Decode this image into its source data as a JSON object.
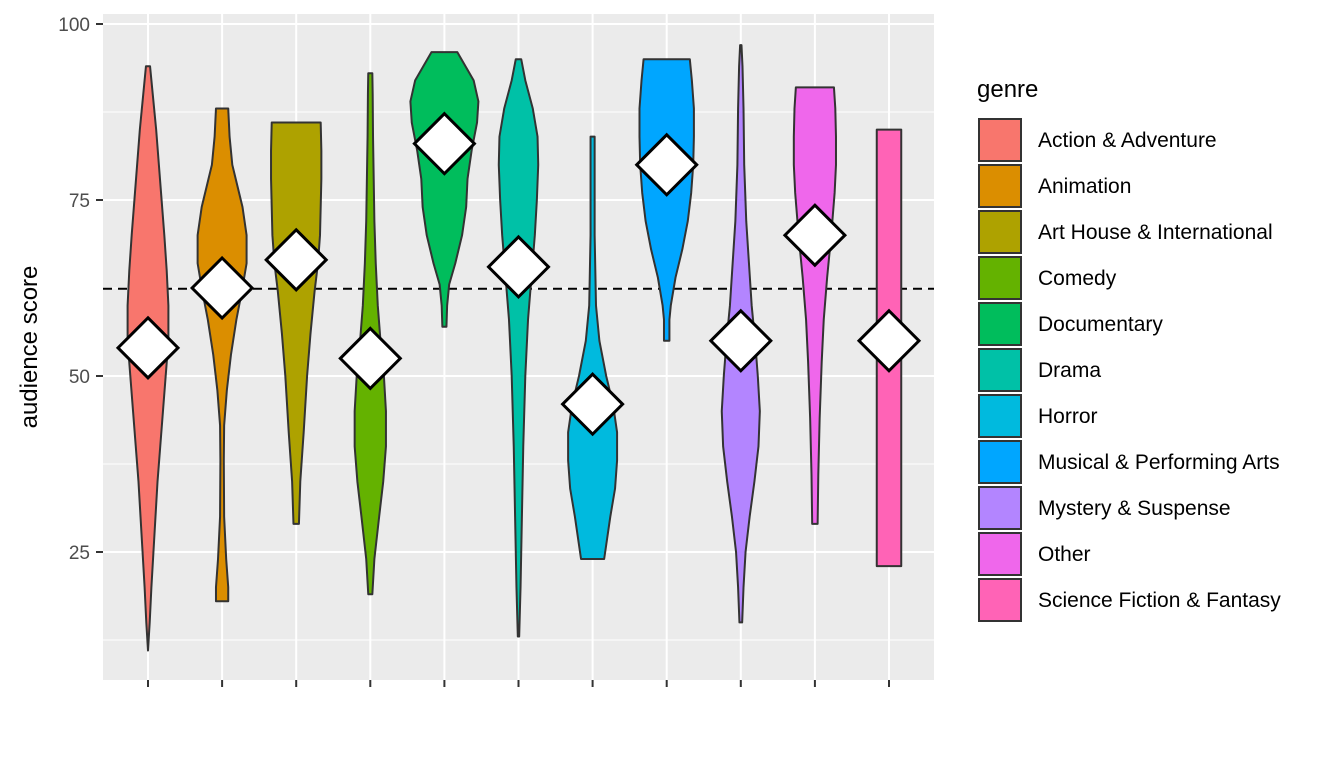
{
  "chart_data": {
    "type": "violin",
    "ylabel": "audience score",
    "xlabel": "",
    "ylim": [
      7,
      101
    ],
    "yticks": [
      25,
      50,
      75,
      100
    ],
    "grid": true,
    "reference_line": {
      "value": 62.4,
      "style": "dashed"
    },
    "legend": {
      "title": "genre",
      "position": "right"
    },
    "series": [
      {
        "name": "Action & Adventure",
        "color": "#F8766D",
        "min": 11,
        "max": 94,
        "mean": 54,
        "density": [
          [
            11,
            0.0
          ],
          [
            15,
            0.05
          ],
          [
            20,
            0.1
          ],
          [
            25,
            0.16
          ],
          [
            30,
            0.22
          ],
          [
            35,
            0.28
          ],
          [
            40,
            0.36
          ],
          [
            45,
            0.44
          ],
          [
            50,
            0.52
          ],
          [
            55,
            0.6
          ],
          [
            60,
            0.6
          ],
          [
            65,
            0.55
          ],
          [
            70,
            0.48
          ],
          [
            75,
            0.4
          ],
          [
            80,
            0.32
          ],
          [
            85,
            0.24
          ],
          [
            90,
            0.14
          ],
          [
            94,
            0.06
          ]
        ]
      },
      {
        "name": "Animation",
        "color": "#DB8E00",
        "min": 18,
        "max": 88,
        "mean": 62.5,
        "density": [
          [
            18,
            0.18
          ],
          [
            20,
            0.18
          ],
          [
            24,
            0.12
          ],
          [
            30,
            0.06
          ],
          [
            38,
            0.05
          ],
          [
            43,
            0.06
          ],
          [
            48,
            0.14
          ],
          [
            53,
            0.26
          ],
          [
            58,
            0.42
          ],
          [
            62,
            0.58
          ],
          [
            66,
            0.72
          ],
          [
            70,
            0.72
          ],
          [
            74,
            0.6
          ],
          [
            78,
            0.4
          ],
          [
            80,
            0.3
          ],
          [
            84,
            0.22
          ],
          [
            88,
            0.18
          ]
        ]
      },
      {
        "name": "Art House & International",
        "color": "#AEA200",
        "min": 29,
        "max": 86,
        "mean": 66.5,
        "density": [
          [
            29,
            0.08
          ],
          [
            35,
            0.12
          ],
          [
            42,
            0.22
          ],
          [
            50,
            0.32
          ],
          [
            56,
            0.42
          ],
          [
            62,
            0.54
          ],
          [
            66,
            0.64
          ],
          [
            70,
            0.7
          ],
          [
            74,
            0.72
          ],
          [
            78,
            0.74
          ],
          [
            82,
            0.74
          ],
          [
            86,
            0.72
          ]
        ]
      },
      {
        "name": "Comedy",
        "color": "#64B200",
        "min": 19,
        "max": 93,
        "mean": 52.5,
        "density": [
          [
            19,
            0.06
          ],
          [
            24,
            0.12
          ],
          [
            30,
            0.26
          ],
          [
            35,
            0.38
          ],
          [
            40,
            0.46
          ],
          [
            45,
            0.46
          ],
          [
            50,
            0.4
          ],
          [
            55,
            0.3
          ],
          [
            60,
            0.22
          ],
          [
            66,
            0.16
          ],
          [
            72,
            0.12
          ],
          [
            78,
            0.1
          ],
          [
            84,
            0.08
          ],
          [
            90,
            0.07
          ],
          [
            93,
            0.06
          ]
        ]
      },
      {
        "name": "Documentary",
        "color": "#00BD5C",
        "min": 57,
        "max": 96,
        "mean": 83,
        "density": [
          [
            57,
            0.06
          ],
          [
            60,
            0.08
          ],
          [
            63,
            0.14
          ],
          [
            66,
            0.32
          ],
          [
            70,
            0.52
          ],
          [
            74,
            0.64
          ],
          [
            78,
            0.68
          ],
          [
            82,
            0.8
          ],
          [
            86,
            0.96
          ],
          [
            89,
            1.0
          ],
          [
            92,
            0.86
          ],
          [
            94,
            0.62
          ],
          [
            96,
            0.38
          ]
        ]
      },
      {
        "name": "Drama",
        "color": "#00C1A7",
        "min": 13,
        "max": 95,
        "mean": 65.5,
        "density": [
          [
            13,
            0.02
          ],
          [
            20,
            0.06
          ],
          [
            30,
            0.1
          ],
          [
            40,
            0.14
          ],
          [
            50,
            0.2
          ],
          [
            58,
            0.28
          ],
          [
            64,
            0.38
          ],
          [
            70,
            0.48
          ],
          [
            75,
            0.54
          ],
          [
            80,
            0.58
          ],
          [
            84,
            0.56
          ],
          [
            88,
            0.42
          ],
          [
            92,
            0.2
          ],
          [
            95,
            0.08
          ]
        ]
      },
      {
        "name": "Horror",
        "color": "#00BADE",
        "min": 24,
        "max": 84,
        "mean": 46,
        "density": [
          [
            24,
            0.34
          ],
          [
            26,
            0.4
          ],
          [
            30,
            0.52
          ],
          [
            34,
            0.66
          ],
          [
            38,
            0.72
          ],
          [
            42,
            0.72
          ],
          [
            46,
            0.6
          ],
          [
            50,
            0.4
          ],
          [
            55,
            0.2
          ],
          [
            60,
            0.1
          ],
          [
            65,
            0.08
          ],
          [
            70,
            0.06
          ],
          [
            76,
            0.06
          ],
          [
            80,
            0.06
          ],
          [
            84,
            0.06
          ]
        ]
      },
      {
        "name": "Musical & Performing Arts",
        "color": "#00A6FF",
        "min": 55,
        "max": 95,
        "mean": 80,
        "density": [
          [
            55,
            0.08
          ],
          [
            58,
            0.08
          ],
          [
            60,
            0.12
          ],
          [
            64,
            0.26
          ],
          [
            68,
            0.46
          ],
          [
            72,
            0.62
          ],
          [
            76,
            0.72
          ],
          [
            80,
            0.78
          ],
          [
            84,
            0.8
          ],
          [
            88,
            0.8
          ],
          [
            92,
            0.74
          ],
          [
            95,
            0.68
          ]
        ]
      },
      {
        "name": "Mystery & Suspense",
        "color": "#B385FF",
        "min": 15,
        "max": 97,
        "mean": 55,
        "density": [
          [
            15,
            0.04
          ],
          [
            20,
            0.08
          ],
          [
            25,
            0.14
          ],
          [
            30,
            0.26
          ],
          [
            35,
            0.4
          ],
          [
            40,
            0.52
          ],
          [
            45,
            0.56
          ],
          [
            50,
            0.5
          ],
          [
            55,
            0.42
          ],
          [
            60,
            0.32
          ],
          [
            66,
            0.24
          ],
          [
            72,
            0.16
          ],
          [
            80,
            0.1
          ],
          [
            88,
            0.08
          ],
          [
            94,
            0.05
          ],
          [
            97,
            0.02
          ]
        ]
      },
      {
        "name": "Other",
        "color": "#EF67EB",
        "min": 29,
        "max": 91,
        "mean": 70,
        "density": [
          [
            29,
            0.08
          ],
          [
            36,
            0.1
          ],
          [
            44,
            0.14
          ],
          [
            52,
            0.2
          ],
          [
            58,
            0.26
          ],
          [
            64,
            0.36
          ],
          [
            70,
            0.48
          ],
          [
            76,
            0.58
          ],
          [
            80,
            0.62
          ],
          [
            84,
            0.62
          ],
          [
            88,
            0.6
          ],
          [
            91,
            0.56
          ]
        ]
      },
      {
        "name": "Science Fiction & Fantasy",
        "color": "#FF63B6",
        "min": 23,
        "max": 85,
        "mean": 55,
        "density": [
          [
            23,
            0.36
          ],
          [
            30,
            0.36
          ],
          [
            40,
            0.36
          ],
          [
            50,
            0.36
          ],
          [
            60,
            0.36
          ],
          [
            70,
            0.36
          ],
          [
            80,
            0.36
          ],
          [
            85,
            0.36
          ]
        ]
      }
    ]
  }
}
